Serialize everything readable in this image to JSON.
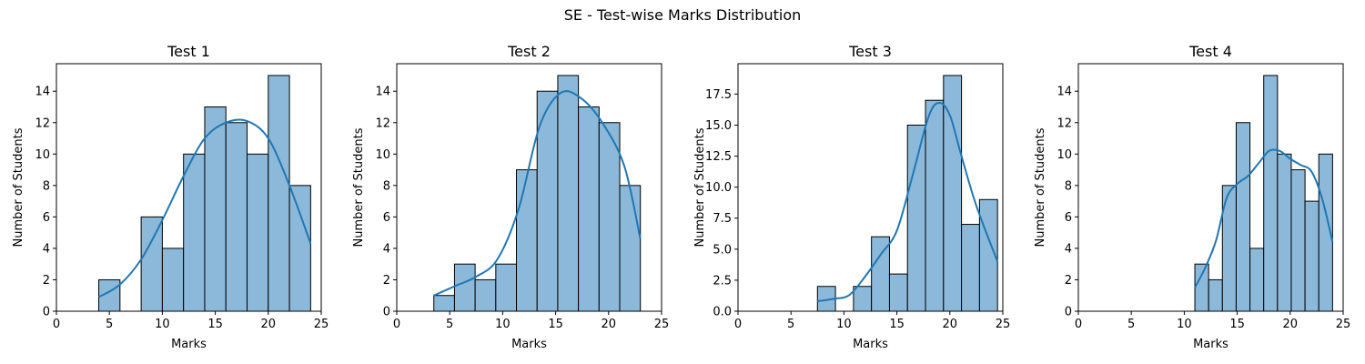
{
  "figure": {
    "suptitle": "SE - Test-wise Marks Distribution"
  },
  "colors": {
    "bar_fill": "#8cb9d9",
    "bar_edge": "#000000",
    "kde_line": "#1f77b4"
  },
  "chart_data": [
    {
      "type": "bar",
      "title": "Test 1",
      "xlabel": "Marks",
      "ylabel": "Number of Students",
      "xlim": [
        0,
        25
      ],
      "ylim": [
        0,
        15.75
      ],
      "xticks": [
        0,
        5,
        10,
        15,
        20,
        25
      ],
      "xtick_labels": [
        "0",
        "5",
        "10",
        "15",
        "20",
        "25"
      ],
      "yticks": [
        0,
        2,
        4,
        6,
        8,
        10,
        12,
        14
      ],
      "ytick_labels": [
        "0",
        "2",
        "4",
        "6",
        "8",
        "10",
        "12",
        "14"
      ],
      "bins": [
        [
          4,
          6,
          2
        ],
        [
          6,
          8,
          0
        ],
        [
          8,
          10,
          6
        ],
        [
          10,
          12,
          4
        ],
        [
          12,
          14,
          10
        ],
        [
          14,
          16,
          13
        ],
        [
          16,
          18,
          12
        ],
        [
          18,
          20,
          10
        ],
        [
          20,
          22,
          15
        ],
        [
          22,
          24,
          8
        ]
      ],
      "kde": [
        [
          4,
          0.9
        ],
        [
          6,
          1.7
        ],
        [
          8,
          3.3
        ],
        [
          10,
          5.8
        ],
        [
          12,
          8.6
        ],
        [
          14,
          11
        ],
        [
          16,
          12
        ],
        [
          18,
          12.1
        ],
        [
          20,
          11
        ],
        [
          22,
          8
        ],
        [
          24,
          4.3
        ]
      ]
    },
    {
      "type": "bar",
      "title": "Test 2",
      "xlabel": "Marks",
      "ylabel": "Number of Students",
      "xlim": [
        0,
        25
      ],
      "ylim": [
        0,
        15.75
      ],
      "xticks": [
        0,
        5,
        10,
        15,
        20,
        25
      ],
      "xtick_labels": [
        "0",
        "5",
        "10",
        "15",
        "20",
        "25"
      ],
      "yticks": [
        0,
        2,
        4,
        6,
        8,
        10,
        12,
        14
      ],
      "ytick_labels": [
        "0",
        "2",
        "4",
        "6",
        "8",
        "10",
        "12",
        "14"
      ],
      "bins": [
        [
          3.5,
          5.45,
          1
        ],
        [
          5.45,
          7.4,
          3
        ],
        [
          7.4,
          9.35,
          2
        ],
        [
          9.35,
          11.3,
          3
        ],
        [
          11.3,
          13.25,
          9
        ],
        [
          13.25,
          15.2,
          14
        ],
        [
          15.2,
          17.15,
          15
        ],
        [
          17.15,
          19.1,
          13
        ],
        [
          19.1,
          21.05,
          12
        ],
        [
          21.05,
          23,
          8
        ]
      ],
      "kde": [
        [
          3.5,
          1
        ],
        [
          5.5,
          1.6
        ],
        [
          7.5,
          2.2
        ],
        [
          9.5,
          3.3
        ],
        [
          11.5,
          6.5
        ],
        [
          13.5,
          11.8
        ],
        [
          15.5,
          13.9
        ],
        [
          17.5,
          13.5
        ],
        [
          19.5,
          11.9
        ],
        [
          21.5,
          9.2
        ],
        [
          23,
          4.6
        ]
      ]
    },
    {
      "type": "bar",
      "title": "Test 3",
      "xlabel": "Marks",
      "ylabel": "Number of Students",
      "xlim": [
        0,
        25
      ],
      "ylim": [
        0,
        19.95
      ],
      "xticks": [
        0,
        5,
        10,
        15,
        20,
        25
      ],
      "xtick_labels": [
        "0",
        "5",
        "10",
        "15",
        "20",
        "25"
      ],
      "yticks": [
        0,
        2.5,
        5,
        7.5,
        10,
        12.5,
        15,
        17.5
      ],
      "ytick_labels": [
        "0.0",
        "2.5",
        "5.0",
        "7.5",
        "10.0",
        "12.5",
        "15.0",
        "17.5"
      ],
      "bins": [
        [
          7.5,
          9.2,
          2
        ],
        [
          9.2,
          10.9,
          0
        ],
        [
          10.9,
          12.6,
          2
        ],
        [
          12.6,
          14.3,
          6
        ],
        [
          14.3,
          16,
          3
        ],
        [
          16,
          17.7,
          15
        ],
        [
          17.7,
          19.4,
          17
        ],
        [
          19.4,
          21.1,
          19
        ],
        [
          21.1,
          22.8,
          7
        ],
        [
          22.8,
          24.5,
          9
        ]
      ],
      "kde": [
        [
          7.5,
          0.8
        ],
        [
          9,
          1
        ],
        [
          10.5,
          1.3
        ],
        [
          12,
          2.8
        ],
        [
          13.5,
          4.6
        ],
        [
          15,
          6.5
        ],
        [
          16.5,
          11
        ],
        [
          18,
          15.7
        ],
        [
          19,
          16.8
        ],
        [
          20,
          15.8
        ],
        [
          21,
          12.8
        ],
        [
          22.5,
          8.5
        ],
        [
          24.5,
          4
        ]
      ]
    },
    {
      "type": "bar",
      "title": "Test 4",
      "xlabel": "Marks",
      "ylabel": "Number of Students",
      "xlim": [
        0,
        25
      ],
      "ylim": [
        0,
        15.75
      ],
      "xticks": [
        0,
        5,
        10,
        15,
        20,
        25
      ],
      "xtick_labels": [
        "0",
        "5",
        "10",
        "15",
        "20",
        "25"
      ],
      "yticks": [
        0,
        2,
        4,
        6,
        8,
        10,
        12,
        14
      ],
      "ytick_labels": [
        "0",
        "2",
        "4",
        "6",
        "8",
        "10",
        "12",
        "14"
      ],
      "bins": [
        [
          11,
          12.3,
          3
        ],
        [
          12.3,
          13.6,
          2
        ],
        [
          13.6,
          14.9,
          8
        ],
        [
          14.9,
          16.2,
          12
        ],
        [
          16.2,
          17.5,
          4
        ],
        [
          17.5,
          18.8,
          15
        ],
        [
          18.8,
          20.1,
          10
        ],
        [
          20.1,
          21.4,
          9
        ],
        [
          21.4,
          22.7,
          7
        ],
        [
          22.7,
          24,
          10
        ]
      ],
      "kde": [
        [
          11,
          1.5
        ],
        [
          12,
          2.8
        ],
        [
          13,
          4.5
        ],
        [
          14,
          7.2
        ],
        [
          15,
          8.1
        ],
        [
          16,
          8.6
        ],
        [
          17,
          9.4
        ],
        [
          18,
          10.2
        ],
        [
          19,
          10.2
        ],
        [
          20,
          9.7
        ],
        [
          21,
          9.3
        ],
        [
          22,
          8.9
        ],
        [
          23,
          7.2
        ],
        [
          24,
          4.4
        ]
      ]
    }
  ]
}
